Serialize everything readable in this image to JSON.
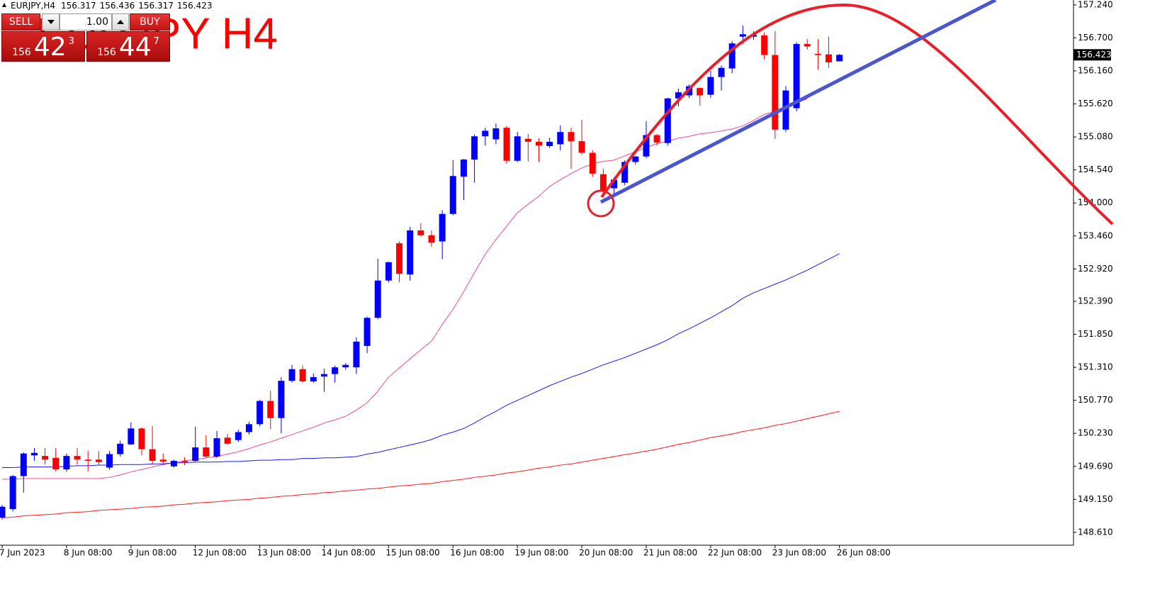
{
  "chart_data": {
    "type": "candlestick",
    "title": "EURJPY,H4",
    "symbol_label": "EURJPY H4",
    "categories": [
      "7 Jun 2023",
      null,
      null,
      null,
      null,
      null,
      "8 Jun 08:00",
      null,
      null,
      null,
      null,
      null,
      "9 Jun 08:00",
      null,
      null,
      null,
      null,
      null,
      "12 Jun 08:00",
      null,
      null,
      null,
      null,
      null,
      "13 Jun 08:00",
      null,
      null,
      null,
      null,
      null,
      "14 Jun 08:00",
      null,
      null,
      null,
      null,
      null,
      "15 Jun 08:00",
      null,
      null,
      null,
      null,
      null,
      "16 Jun 08:00",
      null,
      null,
      null,
      null,
      null,
      "19 Jun 08:00",
      null,
      null,
      null,
      null,
      null,
      "20 Jun 08:00",
      null,
      null,
      null,
      null,
      null,
      "21 Jun 08:00",
      null,
      null,
      null,
      null,
      null,
      "22 Jun 08:00",
      null,
      null,
      null,
      null,
      null,
      "23 Jun 08:00",
      null,
      null,
      null,
      null,
      null,
      "26 Jun 08:00"
    ],
    "open": [
      148.85,
      148.99,
      149.53,
      149.87,
      149.86,
      149.83,
      149.64,
      149.86,
      149.8,
      149.8,
      149.67,
      149.89,
      150.05,
      150.31,
      149.97,
      149.8,
      149.69,
      149.78,
      149.78,
      150.0,
      149.85,
      150.16,
      150.12,
      150.25,
      150.38,
      150.76,
      150.48,
      151.09,
      151.28,
      151.08,
      151.16,
      151.2,
      151.31,
      151.31,
      151.66,
      152.12,
      152.73,
      153.34,
      152.83,
      153.55,
      153.47,
      153.37,
      153.82,
      154.43,
      154.71,
      155.09,
      155.04,
      155.23,
      154.69,
      155.05,
      155.0,
      154.93,
      154.96,
      155.16,
      155.01,
      154.82,
      154.47,
      154.24,
      154.33,
      154.67,
      154.76,
      155.11,
      154.98,
      155.71,
      155.76,
      155.88,
      155.77,
      156.06,
      156.2,
      156.72,
      156.72,
      156.74,
      156.42,
      155.2,
      155.55,
      156.6,
      156.44,
      156.43,
      156.317
    ],
    "high": [
      149.06,
      149.55,
      149.92,
      149.99,
      149.99,
      149.99,
      149.9,
      149.99,
      149.94,
      149.94,
      149.94,
      150.11,
      150.41,
      150.33,
      150.35,
      149.9,
      149.8,
      149.84,
      150.34,
      150.2,
      150.27,
      150.22,
      150.29,
      150.42,
      150.78,
      150.93,
      151.15,
      151.35,
      151.34,
      151.21,
      151.29,
      151.34,
      151.38,
      151.8,
      152.14,
      153.09,
      153.04,
      153.37,
      153.61,
      153.67,
      153.55,
      153.88,
      154.7,
      154.72,
      155.12,
      155.23,
      155.3,
      155.26,
      155.16,
      155.13,
      155.06,
      155.07,
      155.27,
      155.23,
      155.36,
      154.86,
      154.56,
      154.42,
      154.7,
      154.77,
      155.34,
      155.13,
      155.72,
      155.87,
      155.94,
      155.89,
      156.16,
      156.25,
      156.65,
      156.9,
      156.81,
      156.79,
      156.81,
      155.91,
      156.63,
      156.68,
      156.68,
      156.72,
      156.436
    ],
    "low": [
      148.82,
      148.95,
      149.26,
      149.78,
      149.72,
      149.61,
      149.6,
      149.72,
      149.61,
      149.71,
      149.64,
      149.85,
      150.04,
      149.87,
      149.72,
      149.71,
      149.67,
      149.71,
      149.76,
      149.83,
      149.83,
      150.04,
      150.09,
      150.21,
      150.35,
      150.3,
      150.23,
      151.06,
      151.06,
      151.06,
      150.91,
      151.06,
      151.27,
      151.2,
      151.54,
      152.1,
      152.7,
      152.7,
      152.73,
      153.45,
      153.28,
      153.08,
      153.8,
      154.05,
      154.33,
      154.94,
      154.96,
      154.64,
      154.67,
      154.68,
      154.67,
      154.9,
      154.86,
      154.56,
      154.79,
      154.43,
      154.15,
      154.13,
      154.29,
      154.63,
      154.73,
      154.94,
      154.94,
      155.58,
      155.72,
      155.59,
      155.72,
      155.84,
      156.12,
      156.6,
      156.67,
      156.35,
      155.05,
      155.16,
      155.5,
      156.51,
      156.18,
      156.21,
      156.317
    ],
    "close": [
      149.03,
      149.53,
      149.9,
      149.91,
      149.8,
      149.64,
      149.86,
      149.8,
      149.78,
      149.76,
      149.89,
      150.06,
      150.31,
      149.97,
      149.78,
      149.77,
      149.78,
      149.76,
      150.0,
      149.85,
      150.15,
      150.06,
      150.25,
      150.38,
      150.76,
      150.48,
      151.09,
      151.28,
      151.08,
      151.15,
      151.2,
      151.31,
      151.35,
      151.73,
      152.12,
      152.73,
      153.03,
      152.84,
      153.55,
      153.47,
      153.35,
      153.82,
      154.44,
      154.71,
      155.09,
      155.18,
      155.22,
      154.69,
      155.09,
      155.0,
      154.94,
      155.0,
      155.16,
      155.01,
      154.82,
      154.48,
      154.19,
      154.38,
      154.67,
      154.76,
      155.11,
      154.99,
      155.71,
      155.81,
      155.91,
      155.76,
      156.06,
      156.21,
      156.61,
      156.76,
      156.75,
      156.42,
      155.2,
      155.84,
      156.6,
      156.56,
      156.42,
      156.3,
      156.423
    ],
    "up_color": "#0000ff",
    "down_color": "#ff0000",
    "lines": [
      {
        "color": "#f0489e",
        "values": [
          149.48,
          149.48,
          149.49,
          149.49,
          149.49,
          149.49,
          149.49,
          149.49,
          149.49,
          149.49,
          149.51,
          149.55,
          149.6,
          149.64,
          149.68,
          149.72,
          149.75,
          149.78,
          149.8,
          149.83,
          149.85,
          149.89,
          149.93,
          149.98,
          150.04,
          150.09,
          150.15,
          150.21,
          150.27,
          150.33,
          150.4,
          150.45,
          150.51,
          150.61,
          150.73,
          150.92,
          151.15,
          151.3,
          151.45,
          151.6,
          151.74,
          152.01,
          152.26,
          152.55,
          152.86,
          153.16,
          153.4,
          153.62,
          153.84,
          153.98,
          154.11,
          154.27,
          154.38,
          154.48,
          154.57,
          154.64,
          154.68,
          154.7,
          154.77,
          154.84,
          154.91,
          154.97,
          155.01,
          155.06,
          155.09,
          155.13,
          155.15,
          155.18,
          155.21,
          155.26,
          155.35,
          155.45,
          155.5,
          155.57,
          155.64,
          155.7,
          null,
          null,
          null
        ]
      },
      {
        "color": "#1a1aff",
        "values": [
          149.67,
          149.67,
          149.68,
          149.68,
          149.68,
          149.68,
          149.69,
          149.7,
          149.7,
          149.71,
          149.71,
          149.72,
          149.72,
          149.72,
          149.73,
          149.73,
          149.75,
          149.75,
          149.76,
          149.76,
          149.76,
          149.77,
          149.77,
          149.78,
          149.79,
          149.79,
          149.8,
          149.8,
          149.82,
          149.82,
          149.83,
          149.83,
          149.84,
          149.85,
          149.89,
          149.92,
          149.96,
          150.0,
          150.04,
          150.08,
          150.13,
          150.2,
          150.25,
          150.31,
          150.4,
          150.5,
          150.59,
          150.69,
          150.77,
          150.85,
          150.93,
          151.01,
          151.08,
          151.15,
          151.21,
          151.28,
          151.35,
          151.41,
          151.47,
          151.54,
          151.61,
          151.68,
          151.76,
          151.86,
          151.94,
          152.03,
          152.12,
          152.22,
          152.32,
          152.44,
          152.53,
          152.6,
          152.67,
          152.74,
          152.82,
          152.9,
          152.99,
          153.08,
          153.17
        ]
      },
      {
        "color": "#ff1a1a",
        "values": [
          148.85,
          148.86,
          148.88,
          148.89,
          148.9,
          148.91,
          148.93,
          148.94,
          148.95,
          148.97,
          148.98,
          148.99,
          149.0,
          149.02,
          149.03,
          149.04,
          149.06,
          149.07,
          149.09,
          149.1,
          149.11,
          149.13,
          149.14,
          149.15,
          149.17,
          149.18,
          149.2,
          149.21,
          149.23,
          149.24,
          149.26,
          149.27,
          149.29,
          149.3,
          149.32,
          149.33,
          149.35,
          149.37,
          149.38,
          149.4,
          149.41,
          149.44,
          149.46,
          149.48,
          149.51,
          149.53,
          149.55,
          149.58,
          149.6,
          149.63,
          149.66,
          149.68,
          149.71,
          149.73,
          149.76,
          149.79,
          149.82,
          149.85,
          149.88,
          149.91,
          149.94,
          149.97,
          150.01,
          150.05,
          150.08,
          150.12,
          150.16,
          150.19,
          150.22,
          150.26,
          150.29,
          150.32,
          150.36,
          150.39,
          150.43,
          150.47,
          150.51,
          150.55,
          150.59
        ]
      }
    ],
    "ylim": [
      148.4,
      157.32
    ],
    "yticks": [
      {
        "value": 157.24,
        "label": "157.240"
      },
      {
        "value": 156.7,
        "label": "156.700"
      },
      {
        "value": 156.16,
        "label": "156.160"
      },
      {
        "value": 155.62,
        "label": "155.620"
      },
      {
        "value": 155.08,
        "label": "155.080"
      },
      {
        "value": 154.54,
        "label": "154.540"
      },
      {
        "value": 154.0,
        "label": "154.000"
      },
      {
        "value": 153.46,
        "label": "153.460"
      },
      {
        "value": 152.92,
        "label": "152.920"
      },
      {
        "value": 152.39,
        "label": "152.390"
      },
      {
        "value": 151.85,
        "label": "151.850"
      },
      {
        "value": 151.31,
        "label": "151.310"
      },
      {
        "value": 150.77,
        "label": "150.770"
      },
      {
        "value": 150.23,
        "label": "150.230"
      },
      {
        "value": 149.69,
        "label": "149.690"
      },
      {
        "value": 149.15,
        "label": "149.150"
      },
      {
        "value": 148.61,
        "label": "148.610"
      }
    ]
  },
  "trade_panel": {
    "sell": "SELL",
    "buy": "BUY",
    "lots": "1.00",
    "bid": [
      "156",
      "42",
      "3"
    ],
    "ask": [
      "156",
      "44",
      "7"
    ]
  }
}
